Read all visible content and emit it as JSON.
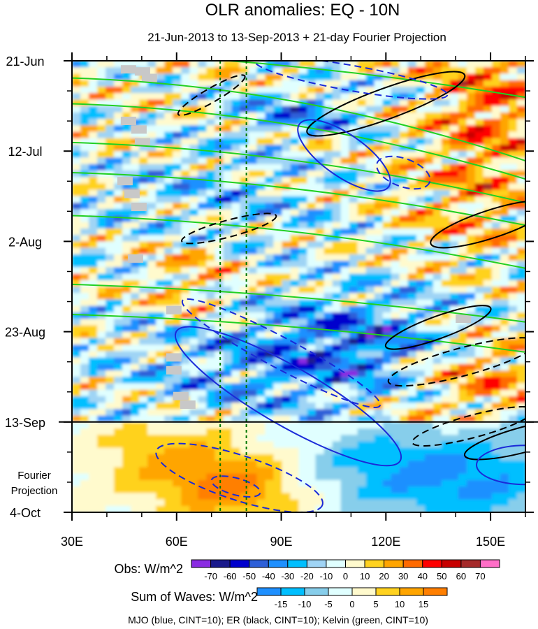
{
  "chart_data": {
    "type": "heatmap",
    "title": "OLR anomalies: EQ - 10N",
    "subtitle": "21-Jun-2013 to 13-Sep-2013 + 21-day Fourier Projection",
    "x_axis": {
      "range": [
        30,
        160
      ],
      "ticks": [
        {
          "value": 30,
          "label": "30E"
        },
        {
          "value": 60,
          "label": "60E"
        },
        {
          "value": 90,
          "label": "90E"
        },
        {
          "value": 120,
          "label": "120E"
        },
        {
          "value": 150,
          "label": "150E"
        }
      ],
      "minor_step": 10
    },
    "y_axis": {
      "range_days": [
        0,
        105
      ],
      "ticks": [
        {
          "day": 0,
          "label": "21-Jun"
        },
        {
          "day": 21,
          "label": "12-Jul"
        },
        {
          "day": 42,
          "label": "2-Aug"
        },
        {
          "day": 63,
          "label": "23-Aug"
        },
        {
          "day": 84,
          "label": "13-Sep"
        },
        {
          "day": 105,
          "label": "4-Oct"
        }
      ],
      "minor_step_days": 7
    },
    "observation_end_day": 84,
    "projection_label": [
      "Fourier",
      "Projection"
    ],
    "reference_lines_lon": [
      72.5,
      80
    ],
    "colorbars": [
      {
        "label": "Obs: W/m^2",
        "levels": [
          -70,
          -60,
          -50,
          -40,
          -30,
          -20,
          -10,
          0,
          10,
          20,
          30,
          40,
          50,
          60,
          70
        ],
        "colors": [
          "#8a2be2",
          "#1a1a8c",
          "#0000cd",
          "#2d5fd8",
          "#1e90ff",
          "#00bfff",
          "#9fd4f5",
          "#e0ffff",
          "#fffacd",
          "#ffd21f",
          "#ffa500",
          "#ff6a00",
          "#ff0000",
          "#c80000",
          "#a52a2a",
          "#ff6ec7"
        ]
      },
      {
        "label": "Sum of Waves: W/m^2",
        "levels": [
          -15,
          -10,
          -5,
          0,
          5,
          10,
          15
        ],
        "colors": [
          "#1e90ff",
          "#00bfff",
          "#87ceeb",
          "#e0ffff",
          "#fffacd",
          "#ffd21f",
          "#ffa500",
          "#ff7f00"
        ]
      }
    ],
    "wave_contours": [
      {
        "name": "MJO",
        "color": "blue",
        "cint": 10
      },
      {
        "name": "ER",
        "color": "black",
        "cint": 10
      },
      {
        "name": "Kelvin",
        "color": "green",
        "cint": 10
      }
    ],
    "footnote": "MJO (blue, CINT=10); ER (black, CINT=10); Kelvin (green, CINT=10)"
  }
}
